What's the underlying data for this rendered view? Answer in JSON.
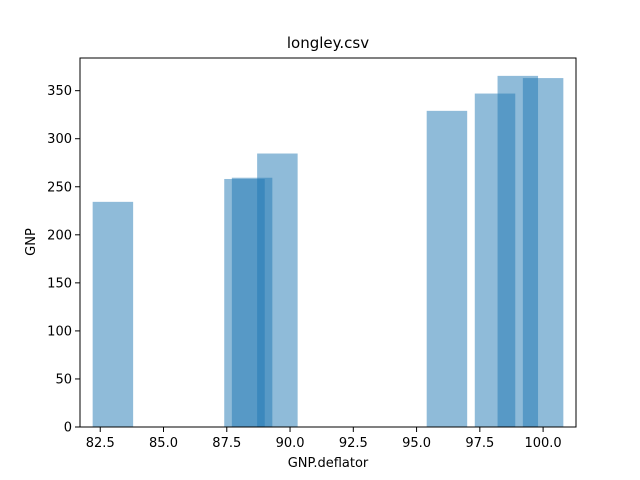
{
  "chart_data": {
    "type": "bar",
    "title": "longley.csv",
    "xlabel": "GNP.deflator",
    "ylabel": "GNP",
    "bar_color": "#1f77b4",
    "bar_opacity": 0.5,
    "bar_width": 1.6,
    "x": [
      83.0,
      88.5,
      88.2,
      89.5,
      96.2,
      98.1,
      99.0,
      100.0
    ],
    "values": [
      234.3,
      259.4,
      258.1,
      284.6,
      329.0,
      347.0,
      365.4,
      363.1
    ],
    "xlim": [
      81.7,
      101.3
    ],
    "ylim": [
      0,
      384
    ],
    "xticks": [
      82.5,
      85.0,
      87.5,
      90.0,
      92.5,
      95.0,
      97.5,
      100.0
    ],
    "xtick_labels": [
      "82.5",
      "85.0",
      "87.5",
      "90.0",
      "92.5",
      "95.0",
      "97.5",
      "100.0"
    ],
    "yticks": [
      0,
      50,
      100,
      150,
      200,
      250,
      300,
      350
    ],
    "ytick_labels": [
      "0",
      "50",
      "100",
      "150",
      "200",
      "250",
      "300",
      "350"
    ],
    "grid": false,
    "legend": false
  }
}
